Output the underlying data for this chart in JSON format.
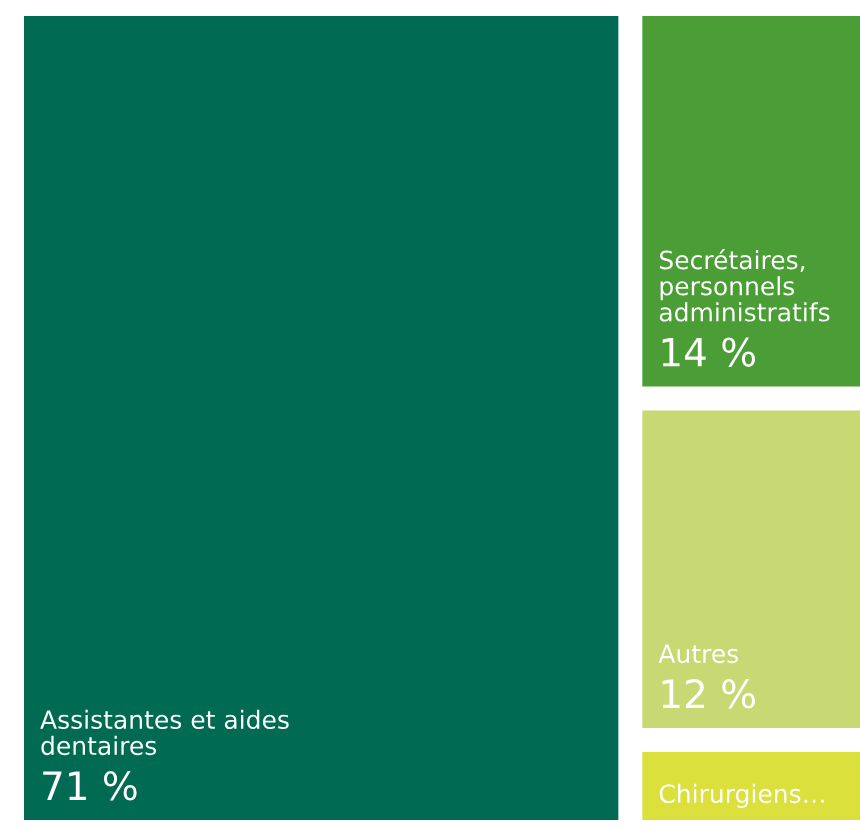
{
  "chart_data": {
    "type": "other",
    "categories": [
      "Assistantes et aides\ndentaires",
      "Secrétaires,\npersonnels\nadministratifs",
      "Autres",
      "Chirurgiens…"
    ],
    "values": [
      71,
      14,
      12,
      null
    ],
    "value_labels": [
      "71 %",
      "14 %",
      "12 %",
      null
    ],
    "colors": [
      "#006b52",
      "#4a9e35",
      "#c8d873",
      "#dbe03c"
    ]
  }
}
